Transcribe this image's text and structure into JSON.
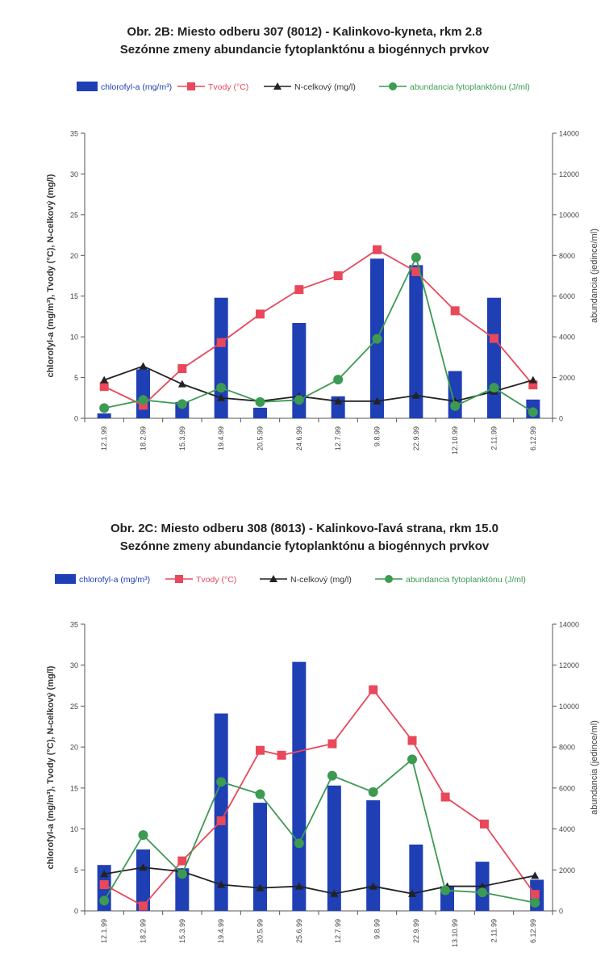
{
  "colors": {
    "chlorophyll": "#1f3fb5",
    "temperature": "#e8485a",
    "nitrogen": "#222222",
    "abundance": "#3c9a52",
    "axis": "#555555"
  },
  "chart_data": [
    {
      "type": "bar",
      "title": "Obr. 2B: Miesto odberu 307 (8012) - Kalinkovo-kyneta, rkm 2.8",
      "subtitle": "Sezónne zmeny abundancie fytoplanktónu a biogénnych prvkov",
      "legend": [
        "chlorofyl-a (mg/m³)",
        "Tvody (°C)",
        "N-celkový (mg/l)",
        "abundancia fytoplanktónu (J/ml)"
      ],
      "legend_position": "top",
      "ylabel_left": "chlorofyl-a (mg/m³),   Tvody (°C),   N-celkový (mg/l)",
      "ylabel_right": "abundancia (jedince/ml)",
      "ylim_left": [
        0,
        35
      ],
      "ylim_right": [
        0,
        14000
      ],
      "yticks_left": [
        0,
        5,
        10,
        15,
        20,
        25,
        30,
        35
      ],
      "yticks_right": [
        0,
        2000,
        4000,
        6000,
        8000,
        10000,
        12000,
        14000
      ],
      "grid": false,
      "categories": [
        "12.1.99",
        "18.2.99",
        "15.3.99",
        "19.4.99",
        "20.5.99",
        "24.6.99",
        "12.7.99",
        "9.8.99",
        "22.9.99",
        "12.10.99",
        "2.11.99",
        "6.12.99"
      ],
      "series": [
        {
          "name": "chlorofyl-a (mg/m³)",
          "kind": "bar",
          "axis": "left",
          "values": [
            0.6,
            6.0,
            2.0,
            14.8,
            1.3,
            11.7,
            2.7,
            19.6,
            18.8,
            5.8,
            14.8,
            2.3
          ]
        },
        {
          "name": "Tvody (°C)",
          "kind": "line",
          "axis": "left",
          "values": [
            3.9,
            1.6,
            6.1,
            9.3,
            12.8,
            15.8,
            17.5,
            20.7,
            18.0,
            13.2,
            9.8,
            4.1
          ]
        },
        {
          "name": "N-celkový (mg/l)",
          "kind": "line",
          "axis": "left",
          "values": [
            4.7,
            6.4,
            4.2,
            2.5,
            2.1,
            2.7,
            2.1,
            2.1,
            2.8,
            2.1,
            3.3,
            4.7
          ]
        },
        {
          "name": "abundancia fytoplanktónu (J/ml)",
          "kind": "line",
          "axis": "right",
          "values": [
            500,
            900,
            700,
            1500,
            800,
            900,
            1900,
            3900,
            7900,
            600,
            1500,
            300
          ]
        }
      ]
    },
    {
      "type": "bar",
      "title": "Obr. 2C: Miesto odberu 308 (8013) - Kalinkovo-ľavá strana, rkm 15.0",
      "subtitle": "Sezónne zmeny abundancie fytoplanktónu a biogénnych prvkov",
      "legend": [
        "chlorofyl-a (mg/m³)",
        "Tvody (°C)",
        "N-celkový (mg/l)",
        "abundancia fytoplanktónu (J/ml)"
      ],
      "legend_position": "top",
      "ylabel_left": "chlorofyl-a (mg/m³),   Tvody (°C),   N-celkový (mg/l)",
      "ylabel_right": "abundancia (jedince/ml)",
      "ylim_left": [
        0,
        35
      ],
      "ylim_right": [
        0,
        14000
      ],
      "yticks_left": [
        0,
        5,
        10,
        15,
        20,
        25,
        30,
        35
      ],
      "yticks_right": [
        0,
        2000,
        4000,
        6000,
        8000,
        10000,
        12000,
        14000
      ],
      "grid": false,
      "categories": [
        "12.1.99",
        "18.2.99",
        "15.3.99",
        "19.4.99",
        "20.5.99",
        "25.6.99",
        "12.7.99",
        "9.8.99",
        "22.9.99",
        "13.10.99",
        "2.11.99",
        "6.12.99"
      ],
      "series": [
        {
          "name": "chlorofyl-a (mg/m³)",
          "kind": "bar",
          "axis": "left",
          "x": [
            0,
            1,
            2,
            3,
            4,
            5,
            5.9,
            6.9,
            8,
            8.8,
            9.7,
            11.1
          ],
          "values": [
            5.6,
            7.5,
            5.2,
            24.1,
            13.2,
            30.4,
            15.3,
            13.5,
            8.1,
            3.0,
            6.0,
            3.8
          ]
        },
        {
          "name": "Tvody (°C)",
          "kind": "line",
          "axis": "left",
          "x": [
            0,
            1,
            2,
            3,
            4,
            4.55,
            5.85,
            6.9,
            7.9,
            8.75,
            9.75,
            11.05
          ],
          "values": [
            3.2,
            0.6,
            6.1,
            11.0,
            19.6,
            19.0,
            20.4,
            27.0,
            20.8,
            13.9,
            10.6,
            2.0
          ]
        },
        {
          "name": "N-celkový (mg/l)",
          "kind": "line",
          "axis": "left",
          "x": [
            0,
            1,
            2,
            3,
            4,
            5,
            5.9,
            6.9,
            7.9,
            8.8,
            9.7,
            11.05
          ],
          "values": [
            4.5,
            5.3,
            4.8,
            3.2,
            2.8,
            3.0,
            2.1,
            3.0,
            2.1,
            3.0,
            3.0,
            4.3
          ]
        },
        {
          "name": "abundancia fytoplanktónu (J/ml)",
          "kind": "line",
          "axis": "right",
          "x": [
            0,
            1,
            2,
            3,
            4,
            5,
            5.85,
            6.9,
            7.9,
            8.75,
            9.7,
            11.05
          ],
          "values": [
            500,
            3700,
            1800,
            6300,
            5700,
            3300,
            6600,
            5800,
            7400,
            1000,
            900,
            400
          ]
        }
      ]
    }
  ]
}
